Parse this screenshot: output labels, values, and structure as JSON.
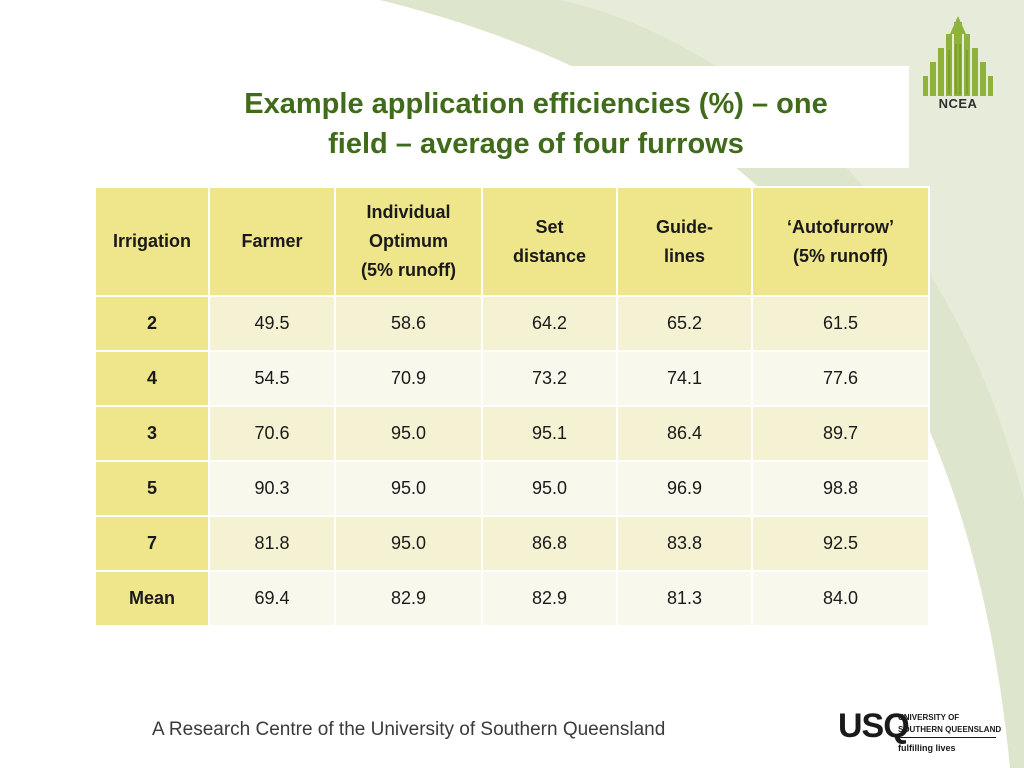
{
  "header": {
    "title_line1": "Example application efficiencies (%) – one",
    "title_line2": "field – average of four furrows",
    "logo_text": "NCEA"
  },
  "table": {
    "columns": [
      "Irrigation",
      "Farmer",
      "Individual Optimum (5% runoff)",
      "Set distance",
      "Guide-lines",
      "‘Autofurrow’ (5% runoff)"
    ],
    "column_lines": [
      [
        "Irrigation"
      ],
      [
        "Farmer"
      ],
      [
        "Individual",
        "Optimum",
        "(5% runoff)"
      ],
      [
        "Set",
        "distance"
      ],
      [
        "Guide-",
        "lines"
      ],
      [
        "‘Autofurrow’",
        "(5% runoff)"
      ]
    ],
    "rows": [
      {
        "irrigation": "2",
        "values": [
          "49.5",
          "58.6",
          "64.2",
          "65.2",
          "61.5"
        ]
      },
      {
        "irrigation": "4",
        "values": [
          "54.5",
          "70.9",
          "73.2",
          "74.1",
          "77.6"
        ]
      },
      {
        "irrigation": "3",
        "values": [
          "70.6",
          "95.0",
          "95.1",
          "86.4",
          "89.7"
        ]
      },
      {
        "irrigation": "5",
        "values": [
          "90.3",
          "95.0",
          "95.0",
          "96.9",
          "98.8"
        ]
      },
      {
        "irrigation": "7",
        "values": [
          "81.8",
          "95.0",
          "86.8",
          "83.8",
          "92.5"
        ]
      },
      {
        "irrigation": "Mean",
        "values": [
          "69.4",
          "82.9",
          "82.9",
          "81.3",
          "84.0"
        ]
      }
    ]
  },
  "footer": {
    "text": "A Research Centre of the University of Southern Queensland",
    "usq_mark": "USQ",
    "usq_line1": "UNIVERSITY OF",
    "usq_line2": "SOUTHERN QUEENSLAND",
    "usq_tagline": "fulfilling lives"
  },
  "colors": {
    "title": "#3f6b1a",
    "header_fill": "#efe58a",
    "row_fill_odd": "#f5f2d4",
    "row_fill_even": "#f9f8ec",
    "background_accent": "#dde6cc"
  }
}
